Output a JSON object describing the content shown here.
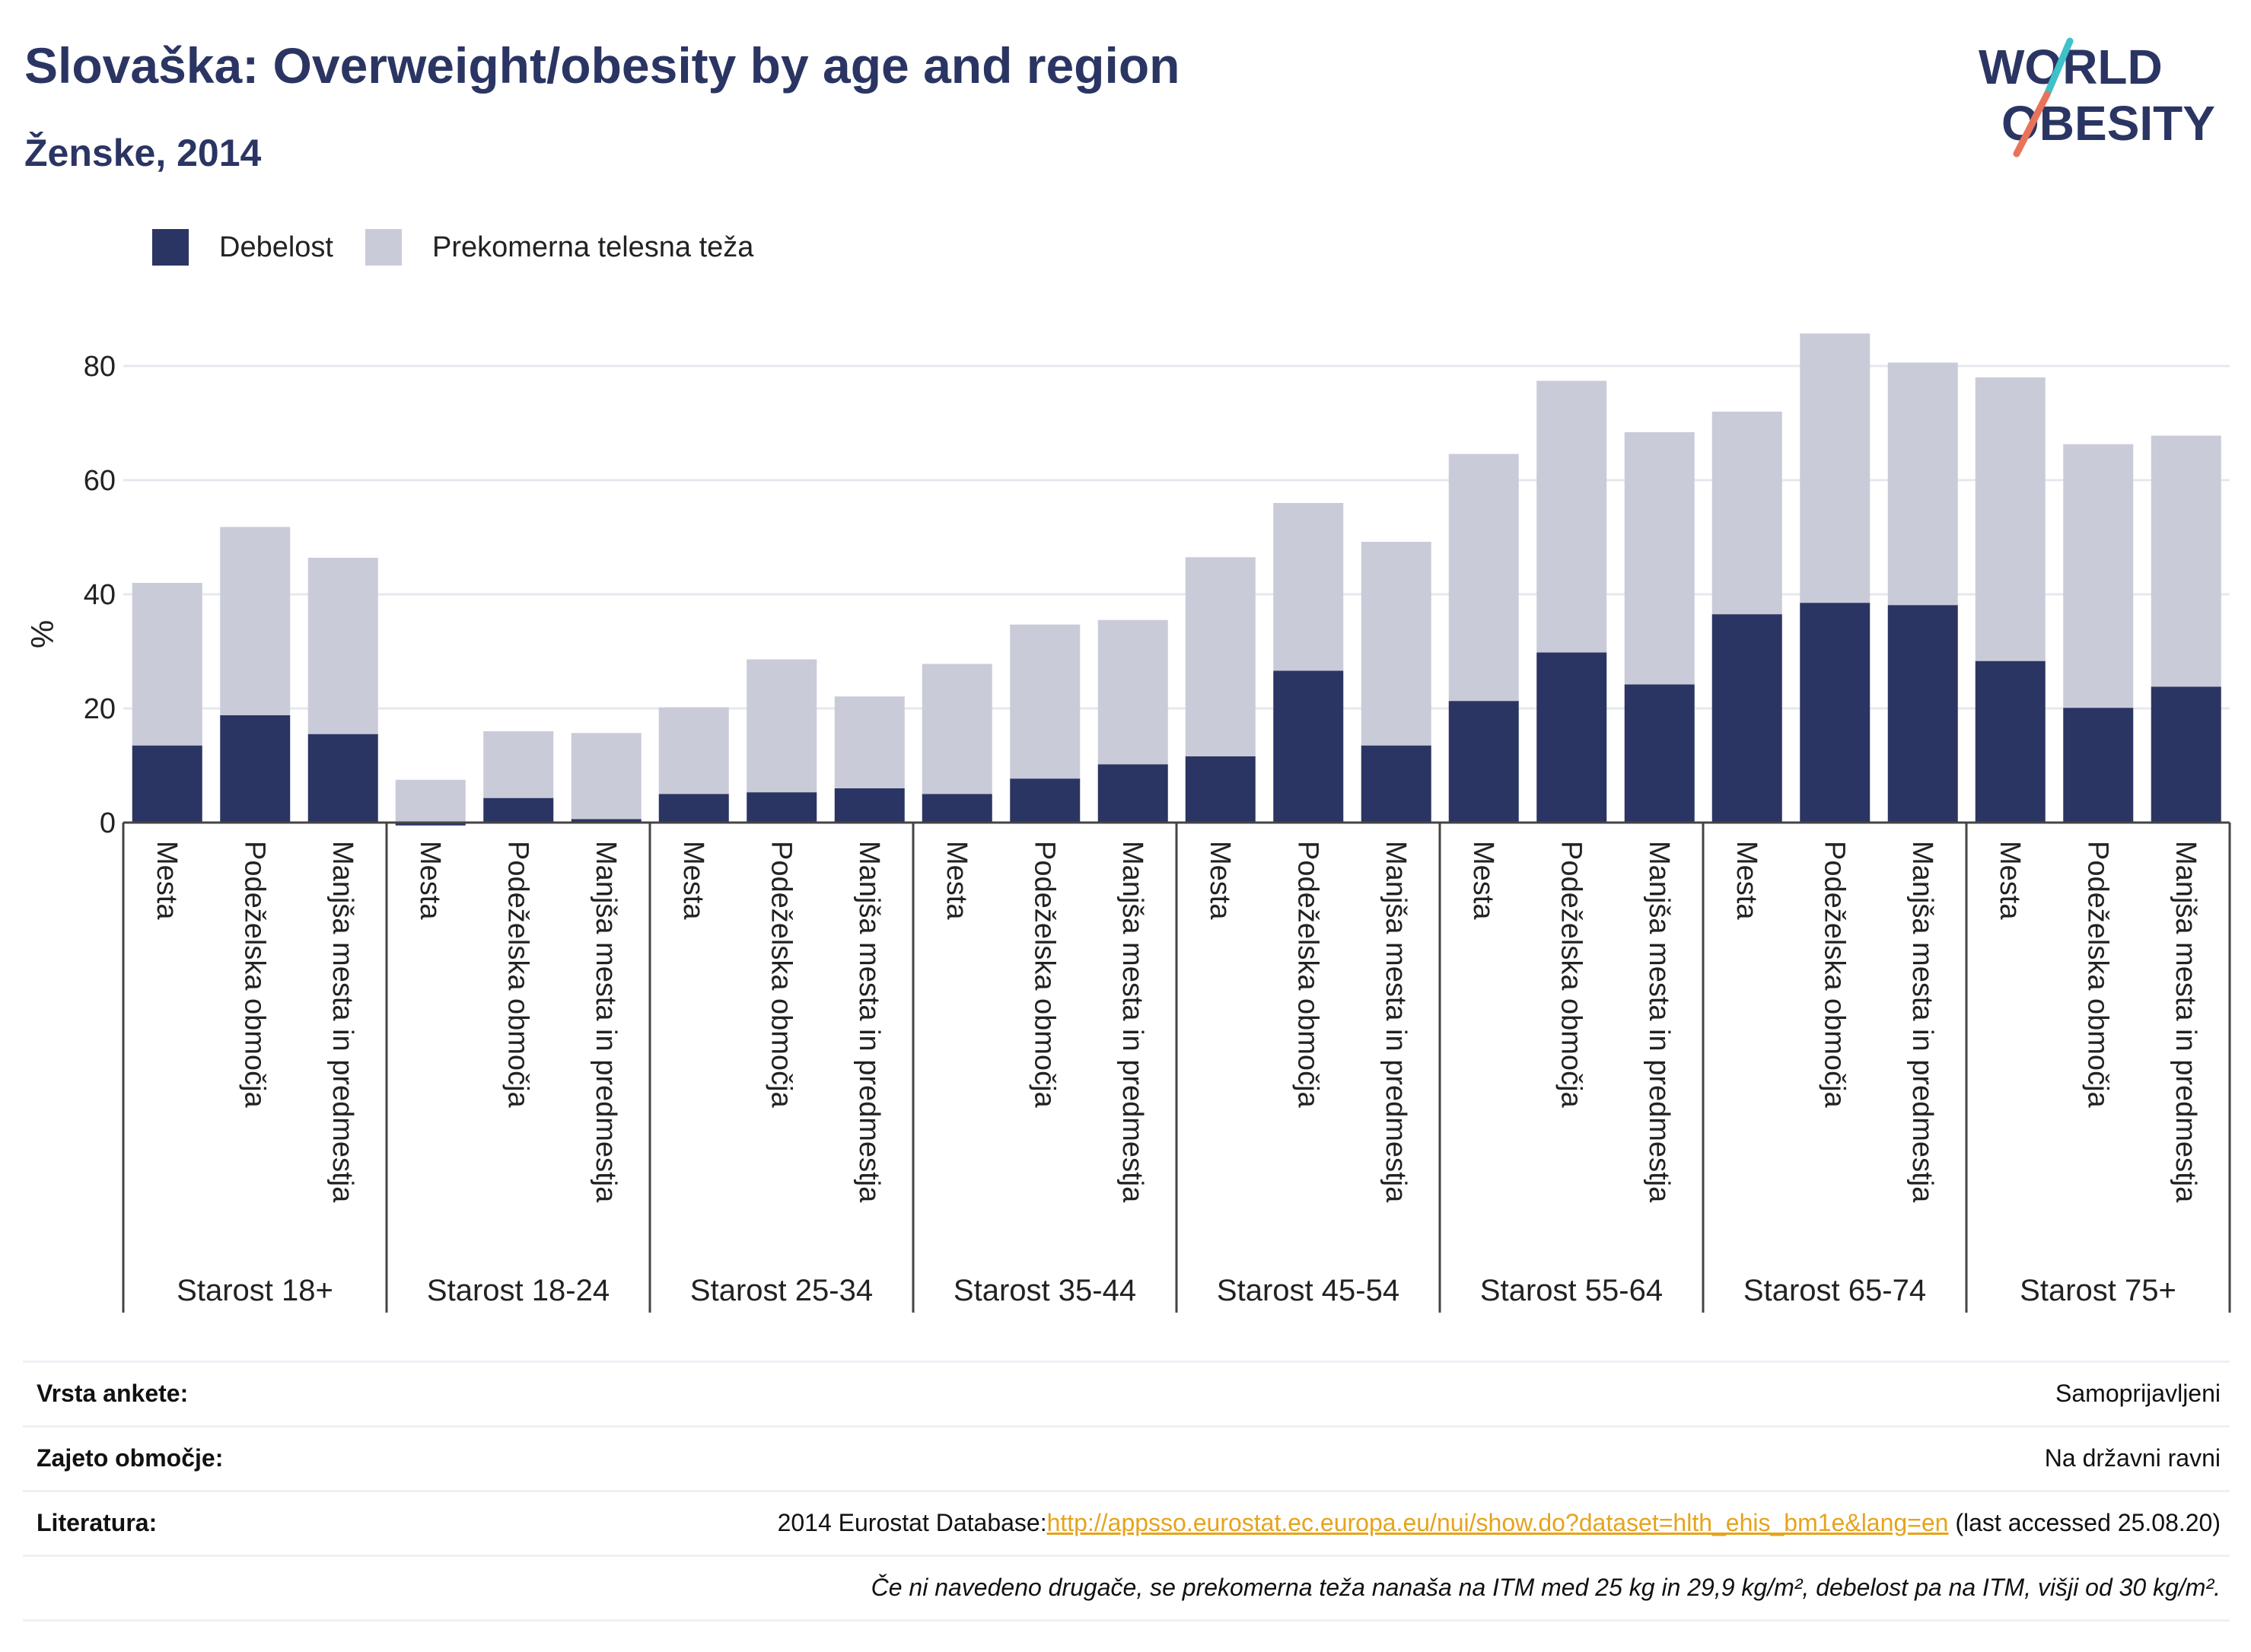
{
  "header": {
    "title": "Slovaška: Overweight/obesity by age and region",
    "subtitle": "Ženske, 2014"
  },
  "logo": {
    "line1": "WORLD",
    "line2": "OBESITY"
  },
  "colors": {
    "obesity": "#2b3563",
    "overweight": "#c9cbd8",
    "accent_teal": "#3fc1c9",
    "accent_coral": "#e8735a",
    "link": "#e6a31c"
  },
  "legend": [
    {
      "label": "Debelost",
      "color": "#2b3563"
    },
    {
      "label": "Prekomerna telesna teža",
      "color": "#c9cbd8"
    }
  ],
  "chart_data": {
    "type": "bar",
    "stacked": true,
    "ylabel": "%",
    "ylim": [
      0,
      90
    ],
    "yticks": [
      0,
      20,
      40,
      60,
      80
    ],
    "grid": true,
    "legend_position": "top-left",
    "region_labels": [
      "Mesta",
      "Podeželska območja",
      "Manjša mesta in predmestja"
    ],
    "groups": [
      {
        "label": "Starost 18+",
        "obesity": [
          13.5,
          18.8,
          15.5
        ],
        "overweight": [
          28.5,
          33.0,
          30.9
        ]
      },
      {
        "label": "Starost 18-24",
        "obesity": [
          -0.5,
          4.3,
          0.6
        ],
        "overweight": [
          8.0,
          11.7,
          15.1
        ]
      },
      {
        "label": "Starost 25-34",
        "obesity": [
          5.0,
          5.3,
          6.0
        ],
        "overweight": [
          15.2,
          23.3,
          16.1
        ]
      },
      {
        "label": "Starost 35-44",
        "obesity": [
          5.0,
          7.7,
          10.2
        ],
        "overweight": [
          22.8,
          27.0,
          25.3
        ]
      },
      {
        "label": "Starost 45-54",
        "obesity": [
          11.6,
          26.6,
          13.5
        ],
        "overweight": [
          34.9,
          29.4,
          35.7
        ]
      },
      {
        "label": "Starost 55-64",
        "obesity": [
          21.3,
          29.8,
          24.2
        ],
        "overweight": [
          43.3,
          47.6,
          44.2
        ]
      },
      {
        "label": "Starost 65-74",
        "obesity": [
          36.5,
          38.5,
          38.1
        ],
        "overweight": [
          35.5,
          47.2,
          42.5
        ]
      },
      {
        "label": "Starost 75+",
        "obesity": [
          28.3,
          20.1,
          23.8
        ],
        "overweight": [
          49.7,
          46.2,
          44.0
        ]
      }
    ]
  },
  "footer": {
    "survey_label": "Vrsta ankete:",
    "survey_value": "Samoprijavljeni",
    "coverage_label": "Zajeto območje:",
    "coverage_value": "Na državni ravni",
    "reference_label": "Literatura:",
    "reference_prefix": "2014 Eurostat Database:",
    "reference_link": "http://appsso.eurostat.ec.europa.eu/nui/show.do?dataset=hlth_ehis_bm1e&lang=en",
    "reference_suffix": " (last accessed 25.08.20)",
    "note": "Če ni navedeno drugače, se prekomerna teža nanaša na ITM med 25 kg in 29,9 kg/m², debelost pa na ITM, višji od 30 kg/m²."
  }
}
